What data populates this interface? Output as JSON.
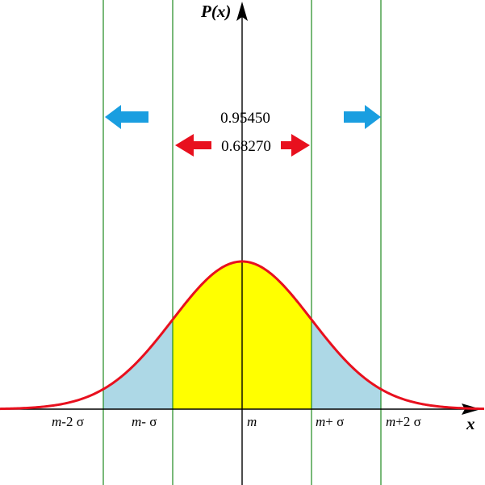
{
  "labels": {
    "y_axis": "P(x)",
    "x_axis": "x",
    "prob_two_sigma": "0.95450",
    "prob_one_sigma": "0.68270",
    "tick_minus2": {
      "m": "m",
      "rest": "-2 σ"
    },
    "tick_minus1": {
      "m": "m",
      "rest": "- σ"
    },
    "tick_mean": "m",
    "tick_plus1": {
      "m": "m",
      "rest": "+ σ"
    },
    "tick_plus2": {
      "m": "m",
      "rest": "+2 σ"
    }
  },
  "colors": {
    "curve": "#e8101e",
    "inner_fill": "#ffff00",
    "outer_fill": "#add8e6",
    "sigma_lines": "#1e8a1e",
    "red_arrow": "#e8101e",
    "blue_arrow": "#1a9ee0",
    "axes": "#000000"
  }
}
